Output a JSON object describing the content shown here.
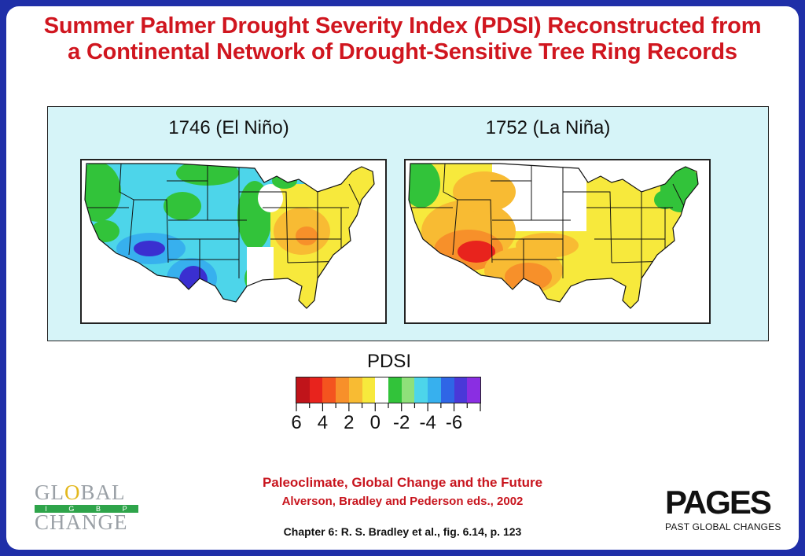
{
  "title": {
    "line1": "Summer Palmer Drought Severity Index (PDSI) Reconstructed from",
    "line2": "a Continental Network of Drought-Sensitive Tree Ring Records"
  },
  "maps": [
    {
      "label": "1746 (El Niño)"
    },
    {
      "label": "1752 (La Niña)"
    }
  ],
  "legend": {
    "title": "PDSI",
    "colors": [
      "#c0141a",
      "#e8231d",
      "#f4541f",
      "#f7902a",
      "#f8bb33",
      "#f7e93c",
      "#ffffff",
      "#32c33a",
      "#8fe07a",
      "#4dd5ea",
      "#37b0ee",
      "#2f66e6",
      "#4a38d8",
      "#8a2ee2"
    ],
    "tick_labels": [
      "6",
      "4",
      "2",
      "0",
      "-2",
      "-4",
      "-6"
    ]
  },
  "colors": {
    "red_dry": "#e8231d",
    "orange": "#f7902a",
    "yellow": "#f7e93c",
    "green": "#32c33a",
    "cyan": "#4dd5ea",
    "blue": "#2f66e6",
    "deep_blue": "#3a2fd0",
    "frame": "#1f2fa8",
    "title_red": "#d0161f"
  },
  "credits": {
    "book": "Paleoclimate, Global Change and the Future",
    "editors": "Alverson, Bradley and Pederson eds., 2002",
    "chapter": "Chapter 6: R. S. Bradley et al., fig. 6.14, p. 123"
  },
  "logos": {
    "global_change": {
      "row1_a": "GL",
      "row1_o": "O",
      "row1_b": "BAL",
      "band": [
        "I",
        "G",
        "B",
        "P"
      ],
      "row3": "CHANGE"
    },
    "pages": {
      "word": "PAGES",
      "tagline": "PAST GLOBAL CHANGES"
    }
  }
}
